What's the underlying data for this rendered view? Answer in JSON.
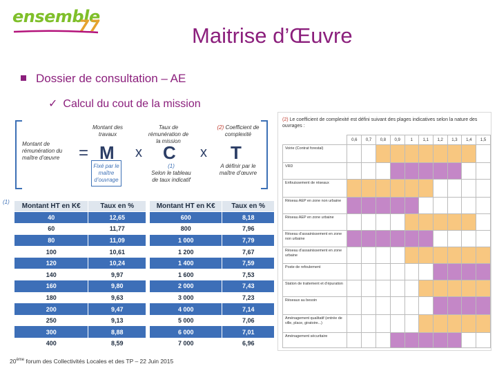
{
  "logo": {
    "word": "ensemble",
    "number": "77"
  },
  "title": "Maitrise d’Œuvre",
  "bullets": {
    "level1": "Dossier de consultation – AE",
    "level2": "Calcul du cout de la mission"
  },
  "formula": {
    "left_label": "Montant de rémunération du maître d’œuvre",
    "equals": "=",
    "m_label": "Montant des travaux",
    "m": "M",
    "times1": "x",
    "c_label": "Taux de rémunération de la mission",
    "c": "C",
    "times2": "x",
    "t_label_ref": "(2)",
    "t_label": "Coefficient de complexité",
    "t": "T",
    "m_note": "Fixé par le maître d’ouvrage",
    "c_note_ref": "(1)",
    "c_note": "Selon le tableau de taux indicatif",
    "t_note": "A définir par le maître d’œuvre"
  },
  "note_ref": "(1)",
  "rate_tables": {
    "headers": [
      "Montant HT en K€",
      "Taux en %"
    ],
    "left": [
      [
        "40",
        "12,65"
      ],
      [
        "60",
        "11,77"
      ],
      [
        "80",
        "11,09"
      ],
      [
        "100",
        "10,61"
      ],
      [
        "120",
        "10,24"
      ],
      [
        "140",
        "9,97"
      ],
      [
        "160",
        "9,80"
      ],
      [
        "180",
        "9,63"
      ],
      [
        "200",
        "9,47"
      ],
      [
        "250",
        "9,13"
      ],
      [
        "300",
        "8,88"
      ],
      [
        "400",
        "8,59"
      ]
    ],
    "right": [
      [
        "600",
        "8,18"
      ],
      [
        "800",
        "7,96"
      ],
      [
        "1 000",
        "7,79"
      ],
      [
        "1 200",
        "7,67"
      ],
      [
        "1 400",
        "7,59"
      ],
      [
        "1 600",
        "7,53"
      ],
      [
        "2 000",
        "7,43"
      ],
      [
        "3 000",
        "7,23"
      ],
      [
        "4 000",
        "7,14"
      ],
      [
        "5 000",
        "7,06"
      ],
      [
        "6 000",
        "7,01"
      ],
      [
        "7 000",
        "6,96"
      ]
    ]
  },
  "complexity": {
    "heading_ref": "(2)",
    "heading": "Le coefficient de complexité est défini suivant des plages indicatives selon la nature des ouvrages :",
    "columns": [
      "0,6",
      "0,7",
      "0,8",
      "0,9",
      "1",
      "1,1",
      "1,2",
      "1,3",
      "1,4",
      "1,5"
    ],
    "rows": [
      {
        "label": "Voirie (Contrat forestal)",
        "cells": "..ooooooo."
      },
      {
        "label": "VRD",
        "cells": "...ppppp.."
      },
      {
        "label": "Enfouissement de réseaux",
        "cells": "oooooo...."
      },
      {
        "label": "Réseau AEP en zone non urbaine",
        "cells": "ppppp....."
      },
      {
        "label": "Réseau AEP en zone urbaine",
        "cells": "....ooooo."
      },
      {
        "label": "Réseau d’assainissement en zone non urbaine",
        "cells": "pppppp...."
      },
      {
        "label": "Réseau d’assainissement en zone urbaine",
        "cells": "....oooooo"
      },
      {
        "label": "Poste de refoulement",
        "cells": "......pppp"
      },
      {
        "label": "Station de traitement et d’épuration",
        "cells": ".....ooooo"
      },
      {
        "label": "Réseaux au besoin",
        "cells": "......pppp"
      },
      {
        "label": "Aménagement qualitatif (entrée de ville, place, giratoire...)",
        "cells": ".....ooooo"
      },
      {
        "label": "Aménagement sécuritaire",
        "cells": "...ppppp.."
      }
    ]
  },
  "footer": {
    "ordinal": "20",
    "sup": "ème",
    "text": " forum des Collectivités Locales et des TP – 22 Juin 2015"
  },
  "colors": {
    "title": "#8b1f7c",
    "table_blue": "#3d6fb8",
    "orange": "#f8c780",
    "purple": "#c487c7"
  }
}
